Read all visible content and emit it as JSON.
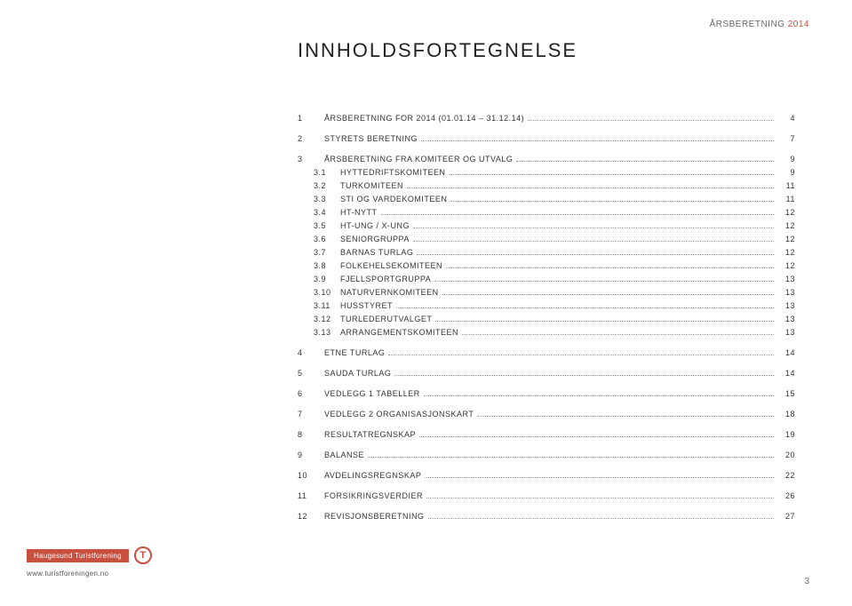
{
  "header": {
    "label_prefix": "ÅRSBERETNING",
    "label_year": "2014"
  },
  "title": "INNHOLDSFORTEGNELSE",
  "toc": [
    {
      "num": "1",
      "label": "ÅRSBERETNING FOR 2014 (01.01.14 – 31.12.14)",
      "page": "4",
      "sub": false,
      "gap_after": true
    },
    {
      "num": "2",
      "label": "STYRETS BERETNING",
      "page": "7",
      "sub": false,
      "gap_after": true
    },
    {
      "num": "3",
      "label": "ÅRSBERETNING FRA KOMITEER OG UTVALG",
      "page": "9",
      "sub": false,
      "gap_after": false
    },
    {
      "num": "3.1",
      "label": "HYTTEDRIFTSKOMITEEN",
      "page": "9",
      "sub": true,
      "gap_after": false
    },
    {
      "num": "3.2",
      "label": "TURKOMITEEN",
      "page": "11",
      "sub": true,
      "gap_after": false
    },
    {
      "num": "3.3",
      "label": "STI OG VARDEKOMITEEN",
      "page": "11",
      "sub": true,
      "gap_after": false
    },
    {
      "num": "3.4",
      "label": "HT-NYTT",
      "page": "12",
      "sub": true,
      "gap_after": false
    },
    {
      "num": "3.5",
      "label": "HT-UNG / X-UNG",
      "page": "12",
      "sub": true,
      "gap_after": false
    },
    {
      "num": "3.6",
      "label": "SENIORGRUPPA",
      "page": "12",
      "sub": true,
      "gap_after": false
    },
    {
      "num": "3.7",
      "label": "BARNAS TURLAG",
      "page": "12",
      "sub": true,
      "gap_after": false
    },
    {
      "num": "3.8",
      "label": "FOLKEHELSEKOMITEEN",
      "page": "12",
      "sub": true,
      "gap_after": false
    },
    {
      "num": "3.9",
      "label": "FJELLSPORTGRUPPA",
      "page": "13",
      "sub": true,
      "gap_after": false
    },
    {
      "num": "3.10",
      "label": "NATURVERNKOMITEEN",
      "page": "13",
      "sub": true,
      "gap_after": false
    },
    {
      "num": "3.11",
      "label": "HUSSTYRET",
      "page": "13",
      "sub": true,
      "gap_after": false
    },
    {
      "num": "3.12",
      "label": "TURLEDERUTVALGET",
      "page": "13",
      "sub": true,
      "gap_after": false
    },
    {
      "num": "3.13",
      "label": "ARRANGEMENTSKOMITEEN",
      "page": "13",
      "sub": true,
      "gap_after": true
    },
    {
      "num": "4",
      "label": "ETNE TURLAG",
      "page": "14",
      "sub": false,
      "gap_after": true
    },
    {
      "num": "5",
      "label": "SAUDA TURLAG",
      "page": "14",
      "sub": false,
      "gap_after": true
    },
    {
      "num": "6",
      "label": "VEDLEGG 1 TABELLER",
      "page": "15",
      "sub": false,
      "gap_after": true
    },
    {
      "num": "7",
      "label": "VEDLEGG 2 ORGANISASJONSKART",
      "page": "18",
      "sub": false,
      "gap_after": true
    },
    {
      "num": "8",
      "label": "RESULTATREGNSKAP",
      "page": "19",
      "sub": false,
      "gap_after": true
    },
    {
      "num": "9",
      "label": "BALANSE",
      "page": "20",
      "sub": false,
      "gap_after": true
    },
    {
      "num": "10",
      "label": "AVDELINGSREGNSKAP",
      "page": "22",
      "sub": false,
      "gap_after": true
    },
    {
      "num": "11",
      "label": "FORSIKRINGSVERDIER",
      "page": "26",
      "sub": false,
      "gap_after": true
    },
    {
      "num": "12",
      "label": "REVISJONSBERETNING",
      "page": "27",
      "sub": false,
      "gap_after": false
    }
  ],
  "footer": {
    "org_name": "Haugesund Turistforening",
    "org_logo_letter": "T",
    "url": "www.turistforeningen.no"
  },
  "page_number": "3",
  "colors": {
    "accent": "#c94f3e",
    "text": "#333333",
    "muted": "#666666",
    "dots": "#999999",
    "background": "#ffffff"
  }
}
